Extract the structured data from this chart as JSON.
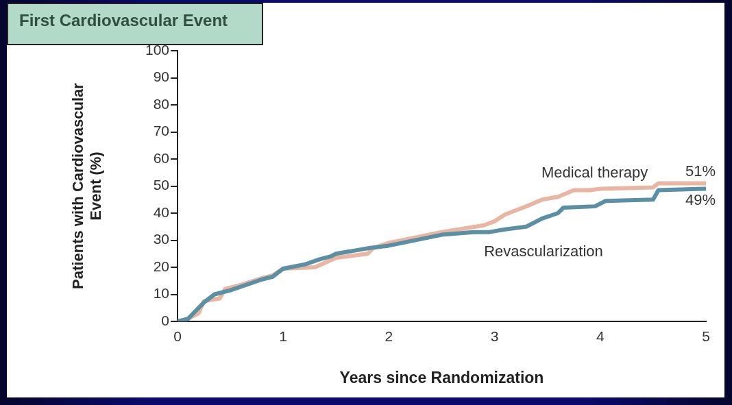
{
  "chart_data": {
    "type": "line",
    "title": "First Cardiovascular Event",
    "xlabel": "Years since Randomization",
    "ylabel": "Patients with Cardiovascular Event (%)",
    "xlim": [
      0,
      5
    ],
    "xticks": [
      0,
      1,
      2,
      3,
      4,
      5
    ],
    "ylim": [
      0,
      100
    ],
    "yticks": [
      0,
      10,
      20,
      30,
      40,
      50,
      60,
      70,
      80,
      90,
      100
    ],
    "grid": false,
    "legend": false,
    "marker": "none",
    "line_style": "solid",
    "series": [
      {
        "name": "Medical therapy",
        "color": "#e8b6a2",
        "x": [
          0,
          0.1,
          0.2,
          0.25,
          0.4,
          0.45,
          0.6,
          0.8,
          0.9,
          1.0,
          1.3,
          1.5,
          1.8,
          1.85,
          2.0,
          2.5,
          2.9,
          3.0,
          3.1,
          3.3,
          3.45,
          3.6,
          3.75,
          3.9,
          4.0,
          4.5,
          4.55,
          5.0
        ],
        "values": [
          0,
          1,
          3,
          7.5,
          8.5,
          12,
          13.5,
          16,
          17,
          19.5,
          20,
          23.5,
          25,
          27,
          29,
          33,
          35.5,
          37,
          39.5,
          42.5,
          45,
          46,
          48.5,
          48.5,
          49,
          49.5,
          51,
          51
        ]
      },
      {
        "name": "Revascularization",
        "color": "#5b8fa3",
        "x": [
          0,
          0.1,
          0.15,
          0.25,
          0.35,
          0.5,
          0.8,
          0.9,
          1.0,
          1.2,
          1.35,
          1.45,
          1.5,
          1.8,
          2.0,
          2.5,
          2.8,
          2.95,
          3.1,
          3.3,
          3.45,
          3.6,
          3.65,
          3.95,
          4.05,
          4.5,
          4.55,
          5.0
        ],
        "values": [
          0,
          1,
          3,
          7,
          10,
          11.5,
          15.5,
          16.5,
          19.5,
          21,
          23,
          24,
          25,
          27,
          28,
          32,
          33,
          33,
          34,
          35,
          38,
          40,
          42,
          42.5,
          44.5,
          45,
          48.5,
          49
        ]
      }
    ],
    "annotations": [
      {
        "text": "51%",
        "x": 5,
        "y": 51
      },
      {
        "text": "49%",
        "x": 5,
        "y": 49
      }
    ]
  }
}
